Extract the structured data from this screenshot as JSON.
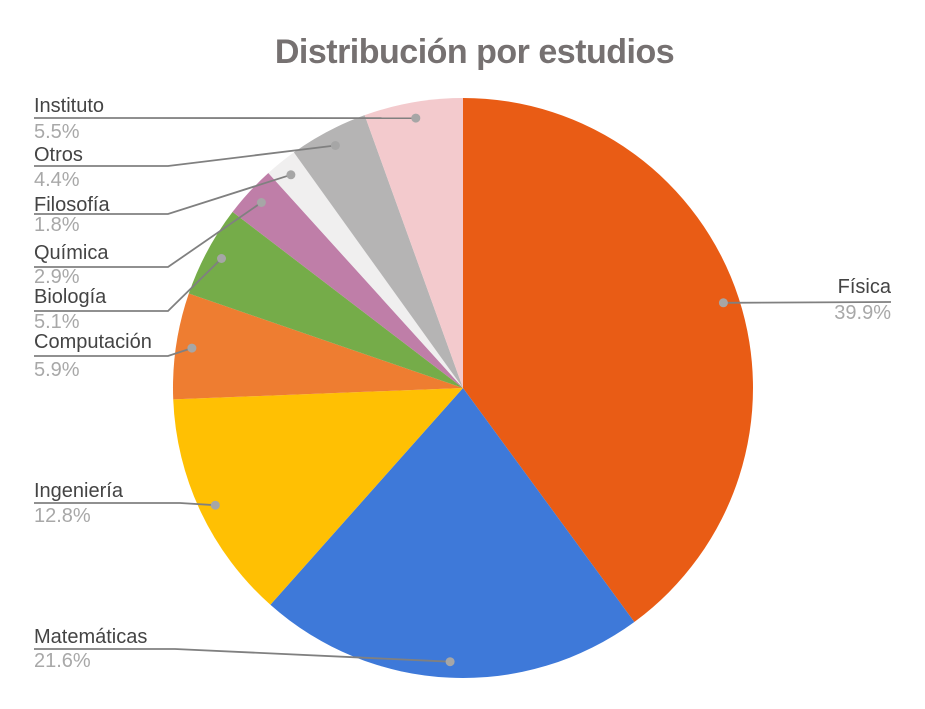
{
  "title": "Distribución por estudios",
  "chart_data": {
    "type": "pie",
    "title": "Distribución por estudios",
    "unit": "%",
    "start_angle_deg": 0,
    "direction": "clockwise",
    "legend_position": "none",
    "label_style": "callout labels with leader lines and end dots",
    "background": "#FFFFFF",
    "total_shown": 99.9,
    "slices": [
      {
        "label": "Física",
        "value": 39.9,
        "pct_label": "39.9%",
        "color": "#E95C15",
        "label_side": "right"
      },
      {
        "label": "Matemáticas",
        "value": 21.6,
        "pct_label": "21.6%",
        "color": "#3E79D9",
        "label_side": "left"
      },
      {
        "label": "Ingeniería",
        "value": 12.8,
        "pct_label": "12.8%",
        "color": "#FFC003",
        "label_side": "left"
      },
      {
        "label": "Computación",
        "value": 5.9,
        "pct_label": "5.9%",
        "color": "#EE7D31",
        "label_side": "left"
      },
      {
        "label": "Biología",
        "value": 5.1,
        "pct_label": "5.1%",
        "color": "#75AC49",
        "label_side": "left"
      },
      {
        "label": "Química",
        "value": 2.9,
        "pct_label": "2.9%",
        "color": "#BF7EA8",
        "label_side": "left"
      },
      {
        "label": "Filosofía",
        "value": 1.8,
        "pct_label": "1.8%",
        "color": "#F0EFEF",
        "label_side": "left"
      },
      {
        "label": "Otros",
        "value": 4.4,
        "pct_label": "4.4%",
        "color": "#B5B4B4",
        "label_side": "left"
      },
      {
        "label": "Instituto",
        "value": 5.5,
        "pct_label": "5.5%",
        "color": "#F3CACD",
        "label_side": "left"
      }
    ],
    "colors": {
      "title_text": "#767171",
      "label_text": "#444444",
      "percent_text": "#A8A8A8",
      "leader_line": "#808080",
      "leader_dot": "#A6A6A6"
    }
  }
}
